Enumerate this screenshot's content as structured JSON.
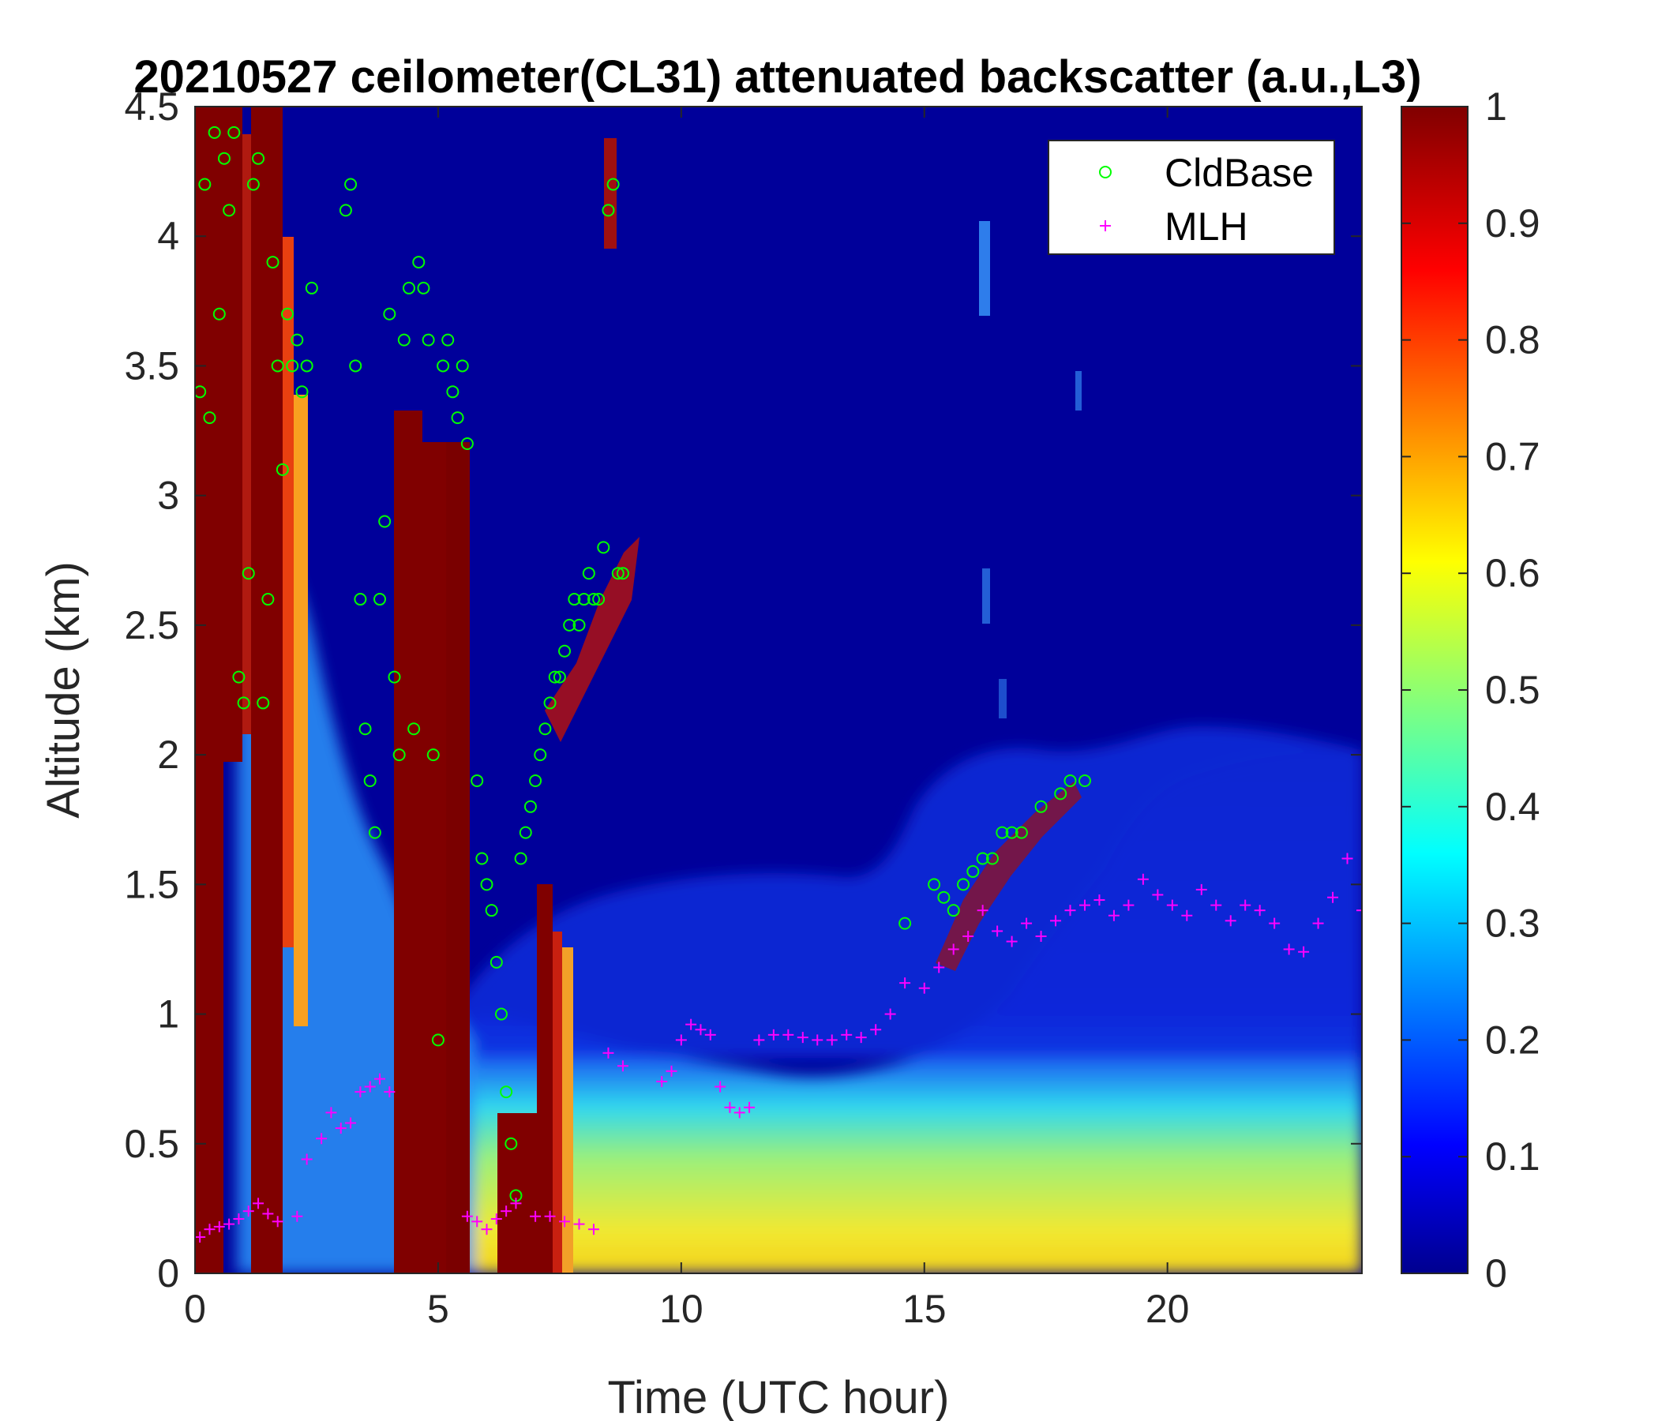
{
  "chart_data": {
    "type": "heatmap",
    "title": "20210527 ceilometer(CL31) attenuated backscatter (a.u.,L3)",
    "xlabel": "Time (UTC hour)",
    "ylabel": "Altitude (km)",
    "xlim": [
      0,
      24
    ],
    "ylim": [
      0,
      4.5
    ],
    "xticks": [
      0,
      5,
      10,
      15,
      20
    ],
    "xtick_labels": [
      "0",
      "5",
      "10",
      "15",
      "20"
    ],
    "yticks": [
      0,
      0.5,
      1,
      1.5,
      2,
      2.5,
      3,
      3.5,
      4,
      4.5
    ],
    "ytick_labels": [
      "0",
      "0.5",
      "1",
      "1.5",
      "2",
      "2.5",
      "3",
      "3.5",
      "4",
      "4.5"
    ],
    "colorbar": {
      "colormap": "jet",
      "range": [
        0,
        1
      ],
      "ticks": [
        0,
        0.1,
        0.2,
        0.3,
        0.4,
        0.5,
        0.6,
        0.7,
        0.8,
        0.9,
        1
      ],
      "tick_labels": [
        "0",
        "0.1",
        "0.2",
        "0.3",
        "0.4",
        "0.5",
        "0.6",
        "0.7",
        "0.8",
        "0.9",
        "1"
      ]
    },
    "legend": {
      "position": "top-right"
    },
    "series": [
      {
        "name": "CldBase",
        "marker": "circle",
        "color": "#00ff00",
        "x": [
          0.1,
          0.2,
          0.3,
          0.4,
          0.5,
          0.6,
          0.7,
          0.8,
          0.9,
          1.0,
          1.1,
          1.2,
          1.3,
          1.4,
          1.5,
          1.6,
          1.7,
          1.8,
          1.9,
          2.0,
          2.1,
          2.2,
          2.3,
          2.4,
          3.1,
          3.2,
          3.3,
          3.4,
          3.5,
          3.6,
          3.7,
          3.8,
          3.9,
          4.0,
          4.1,
          4.2,
          4.3,
          4.4,
          4.5,
          4.6,
          4.7,
          4.8,
          4.9,
          5.0,
          5.1,
          5.2,
          5.3,
          5.4,
          5.5,
          5.6,
          5.8,
          5.9,
          6.0,
          6.1,
          6.2,
          6.3,
          6.4,
          6.5,
          6.6,
          6.7,
          6.8,
          6.9,
          7.0,
          7.1,
          7.2,
          7.3,
          7.4,
          7.5,
          7.6,
          7.7,
          7.8,
          7.9,
          8.0,
          8.1,
          8.2,
          8.3,
          8.4,
          8.5,
          8.6,
          8.7,
          8.8,
          14.6,
          15.2,
          15.4,
          15.6,
          15.8,
          16.0,
          16.2,
          16.4,
          16.6,
          16.8,
          17.0,
          17.4,
          17.8,
          18.0,
          18.3
        ],
        "y": [
          3.4,
          4.2,
          3.3,
          4.4,
          3.7,
          4.3,
          4.1,
          4.4,
          2.3,
          2.2,
          2.7,
          4.2,
          4.3,
          2.2,
          2.6,
          3.9,
          3.5,
          3.1,
          3.7,
          3.5,
          3.6,
          3.4,
          3.5,
          3.8,
          4.1,
          4.2,
          3.5,
          2.6,
          2.1,
          1.9,
          1.7,
          2.6,
          2.9,
          3.7,
          2.3,
          2.0,
          3.6,
          3.8,
          2.1,
          3.9,
          3.8,
          3.6,
          2.0,
          0.9,
          3.5,
          3.6,
          3.4,
          3.3,
          3.5,
          3.2,
          1.9,
          1.6,
          1.5,
          1.4,
          1.2,
          1.0,
          0.7,
          0.5,
          0.3,
          1.6,
          1.7,
          1.8,
          1.9,
          2.0,
          2.1,
          2.2,
          2.3,
          2.3,
          2.4,
          2.5,
          2.6,
          2.5,
          2.6,
          2.7,
          2.6,
          2.6,
          2.8,
          4.1,
          4.2,
          2.7,
          2.7,
          1.35,
          1.5,
          1.45,
          1.4,
          1.5,
          1.55,
          1.6,
          1.6,
          1.7,
          1.7,
          1.7,
          1.8,
          1.85,
          1.9,
          1.9
        ]
      },
      {
        "name": "MLH",
        "marker": "plus",
        "color": "#ff00ff",
        "x": [
          0.1,
          0.3,
          0.5,
          0.7,
          0.9,
          1.1,
          1.3,
          1.5,
          1.7,
          2.1,
          2.3,
          2.6,
          2.8,
          3.0,
          3.2,
          3.4,
          3.6,
          3.8,
          4.0,
          5.6,
          5.8,
          6.0,
          6.2,
          6.4,
          6.6,
          7.0,
          7.3,
          7.6,
          7.9,
          8.2,
          8.5,
          8.8,
          9.6,
          9.8,
          10.0,
          10.2,
          10.4,
          10.6,
          10.8,
          11.0,
          11.2,
          11.4,
          11.6,
          11.9,
          12.2,
          12.5,
          12.8,
          13.1,
          13.4,
          13.7,
          14.0,
          14.3,
          14.6,
          15.0,
          15.3,
          15.6,
          15.9,
          16.2,
          16.5,
          16.8,
          17.1,
          17.4,
          17.7,
          18.0,
          18.3,
          18.6,
          18.9,
          19.2,
          19.5,
          19.8,
          20.1,
          20.4,
          20.7,
          21.0,
          21.3,
          21.6,
          21.9,
          22.2,
          22.5,
          22.8,
          23.1,
          23.4,
          23.7,
          24.0
        ],
        "y": [
          0.14,
          0.17,
          0.18,
          0.19,
          0.21,
          0.24,
          0.27,
          0.23,
          0.2,
          0.22,
          0.44,
          0.52,
          0.62,
          0.56,
          0.58,
          0.7,
          0.72,
          0.75,
          0.7,
          0.22,
          0.2,
          0.17,
          0.21,
          0.24,
          0.27,
          0.22,
          0.22,
          0.2,
          0.19,
          0.17,
          0.85,
          0.8,
          0.74,
          0.78,
          0.9,
          0.96,
          0.94,
          0.92,
          0.72,
          0.64,
          0.62,
          0.64,
          0.9,
          0.92,
          0.92,
          0.91,
          0.9,
          0.9,
          0.92,
          0.91,
          0.94,
          1.0,
          1.12,
          1.1,
          1.18,
          1.25,
          1.3,
          1.4,
          1.32,
          1.28,
          1.35,
          1.3,
          1.36,
          1.4,
          1.42,
          1.44,
          1.38,
          1.42,
          1.52,
          1.46,
          1.42,
          1.38,
          1.48,
          1.42,
          1.36,
          1.42,
          1.4,
          1.35,
          1.25,
          1.24,
          1.35,
          1.45,
          1.6,
          1.4
        ]
      }
    ]
  }
}
